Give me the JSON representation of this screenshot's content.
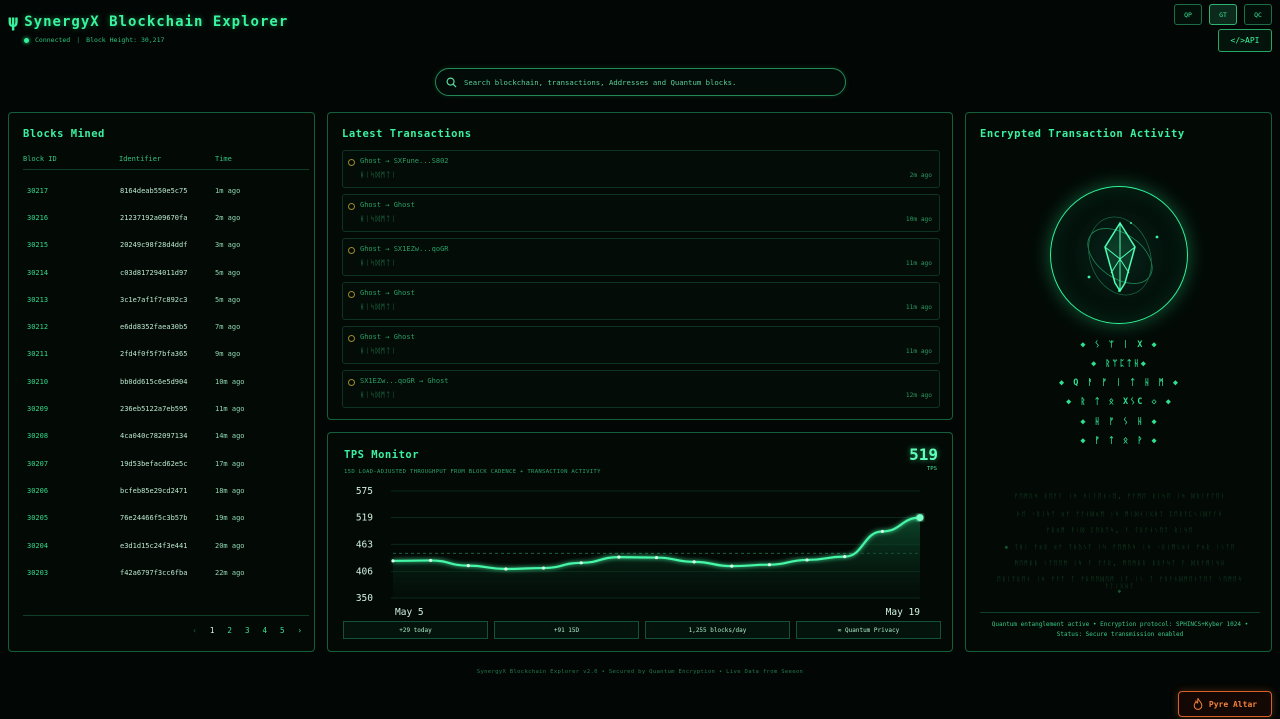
{
  "header": {
    "logo_glyph": "ψ",
    "title": "SynergyX Blockchain Explorer",
    "status": "Connected",
    "separator": "|",
    "block_height": "Block Height: 30,217",
    "top_buttons": [
      "QP",
      "GT",
      "QC"
    ],
    "api_label": "</>API"
  },
  "search": {
    "placeholder": "Search blockchain, transactions, Addresses and Quantum blocks."
  },
  "blocks": {
    "title": "Blocks Mined",
    "columns": [
      "Block ID",
      "Identifier",
      "Time"
    ],
    "rows": [
      {
        "id": "30217",
        "hash": "8164deab550e5c75",
        "time": "1m ago"
      },
      {
        "id": "30216",
        "hash": "21237192a09670fa",
        "time": "2m ago"
      },
      {
        "id": "30215",
        "hash": "20249c98f28d4ddf",
        "time": "3m ago"
      },
      {
        "id": "30214",
        "hash": "c03d817294011d97",
        "time": "5m ago"
      },
      {
        "id": "30213",
        "hash": "3c1e7af1f7c892c3",
        "time": "5m ago"
      },
      {
        "id": "30212",
        "hash": "e6dd8352faea30b5",
        "time": "7m ago"
      },
      {
        "id": "30211",
        "hash": "2fd4f0f5f7bfa365",
        "time": "9m ago"
      },
      {
        "id": "30210",
        "hash": "bb0dd615c6e5d904",
        "time": "10m ago"
      },
      {
        "id": "30209",
        "hash": "236eb5122a7eb595",
        "time": "11m ago"
      },
      {
        "id": "30208",
        "hash": "4ca040c782097134",
        "time": "14m ago"
      },
      {
        "id": "30207",
        "hash": "19d53befacd62e5c",
        "time": "17m ago"
      },
      {
        "id": "30206",
        "hash": "bcfeb85e29cd2471",
        "time": "18m ago"
      },
      {
        "id": "30205",
        "hash": "76e24466f5c3b57b",
        "time": "19m ago"
      },
      {
        "id": "30204",
        "hash": "e3d1d15c24f3e441",
        "time": "20m ago"
      },
      {
        "id": "30203",
        "hash": "f42a6797f3cc6fba",
        "time": "22m ago"
      }
    ],
    "pager": {
      "prev": "‹",
      "pages": [
        "1",
        "2",
        "3",
        "4",
        "5"
      ],
      "next": "›"
    }
  },
  "transactions": {
    "title": "Latest Transactions",
    "items": [
      {
        "route": "Ghost → SXFune...S802",
        "glyph": "ᚺᛁᛋᛞᛗᛏᛁ",
        "ago": "2m ago"
      },
      {
        "route": "Ghost → Ghost",
        "glyph": "ᚺᛁᛋᛞᛗᛏᛁ",
        "ago": "10m ago"
      },
      {
        "route": "Ghost → SX1EZw...qoGR",
        "glyph": "ᚺᛁᛋᛞᛗᛏᛁ",
        "ago": "11m ago"
      },
      {
        "route": "Ghost → Ghost",
        "glyph": "ᚺᛁᛋᛞᛗᛏᛁ",
        "ago": "11m ago"
      },
      {
        "route": "Ghost → Ghost",
        "glyph": "ᚺᛁᛋᛞᛗᛏᛁ",
        "ago": "11m ago"
      },
      {
        "route": "SX1EZw...qoGR → Ghost",
        "glyph": "ᚺᛁᛋᛞᛗᛏᛁ",
        "ago": "12m ago"
      }
    ]
  },
  "tps": {
    "title": "TPS Monitor",
    "subtitle": "15D LOAD-ADJUSTED THROUGHPUT FROM BLOCK CADENCE + TRANSACTION ACTIVITY",
    "value": "519",
    "unit": "TPS",
    "stats": [
      "+29 today",
      "+91 15D",
      "1,255 blocks/day",
      "∞ Quantum Privacy"
    ]
  },
  "chart_data": {
    "type": "area",
    "x": [
      "May 5",
      "May 6",
      "May 7",
      "May 8",
      "May 9",
      "May 10",
      "May 11",
      "May 12",
      "May 13",
      "May 14",
      "May 15",
      "May 16",
      "May 17",
      "May 18",
      "May 19"
    ],
    "values": [
      428,
      429,
      418,
      411,
      413,
      424,
      436,
      435,
      426,
      417,
      420,
      430,
      437,
      490,
      519
    ],
    "y_ticks": [
      "575",
      "519",
      "463",
      "406",
      "350"
    ],
    "x_tick_labels": [
      "May 5",
      "May 19"
    ],
    "ylim": [
      350,
      575
    ],
    "reference_line": 444,
    "grid": true,
    "colors": {
      "line": "#45f7a6",
      "fill": "#0a3a23"
    }
  },
  "encrypted": {
    "title": "Encrypted Transaction Activity",
    "runes": [
      "◆ ᛊ ᛘ ᛁ X ◆",
      "◆ ᚱᛘᛈᛏᚺ◆",
      "◆ Q ᚨ ᚠ ᛁ ᛏ ᚺ ᛗ ◆",
      "◆ ᚱ ᛏ ᛟ XᛊC ◇ ◆",
      "◆ ᚺ ᚠ ᛊ ᚺ ◆",
      "◆ ᚠ ᛏ ᛟ ᚹ ◆"
    ],
    "faint_lines": [
      "ᚠᛖᛗᚢᛋ ᚱᛖᚨᛚ ᛁᛋ ᛋᛁᛚᛖᚾᚲᛖ, ᚠᚨᛗᛖ ᚱᛁᛋᛖ ᛁᛋ ᛞᚱᛁᚠᛏᛖᚾ",
      "ᚦᛖ ᚲᚱᛁᛋᛏ ᛟᚠ ᚠᚨᚾᛞᛟᛗ ᛁᛋ ᛗᛁᛞᚾᛁᚷᚺᛏ ᛈᛖᚱᚨᛈᛊᛁᛞᚨᛚᛋ",
      "ᚠᚱᛟᛗ ᚹᛁᛞ ᛈᛖᚱᛏᛋ, ᚨ ᛏᚱᚨᚾᛊᛖᛏ ᚱᛁᛋᛖ",
      "◆ ᛏᚺᛁ ᚠᛟᚱ ᛟᚠ ᛏᚱᚢᛊᛏ ᛁᛋ ᚠᛖᛗᚢᛋ ᛁᛋ ᚲᚱᛁᛗᛊᛟᚾ ᚠᛟᚱ ᛁᛊᛏᛖ",
      "ᛗᛖᛗᛒᚱ ᛊᛏᛖᛖᛗ ᛁᛋ ᚨ ᚠᚨᚱ, ᛗᛖᛗᛒᚱ ᛒᚱᚨᛋᛏ ᚨ ᛞᚱᚨᛗᛁᛋᚺ",
      "ᛖᚱᛁᛏᚱᛖᚾ ᛁᛋ ᚠᚨᛏ ᛏ ᚠᚱᛖᛖᛞᛖᛗ ᛁᛏ ᛁᛊ ᛏ ᚠᚱᚨᚾᛞᛗᛖᚾᛏᛖᛏ ᛊᛖᛗᛖᛋ ᚨᛚᛁᚷᚺᛏ",
      "◆"
    ],
    "footer_line1": "Quantum entanglement active • Encryption protocol: SPHINCS+Kyber 1024 •",
    "footer_line2": "Status: Secure transmission enabled"
  },
  "footer": "SynergyX Blockchain Explorer v2.0 • Secured by Quantum Encryption • Live Data from Seeeon",
  "pyre_button": {
    "label": "Pyre Altar",
    "icon": "flame-icon",
    "color": "#f2813b"
  },
  "colors": {
    "accent": "#37f29b",
    "panel_border": "#135f3b",
    "background": "#020604"
  }
}
